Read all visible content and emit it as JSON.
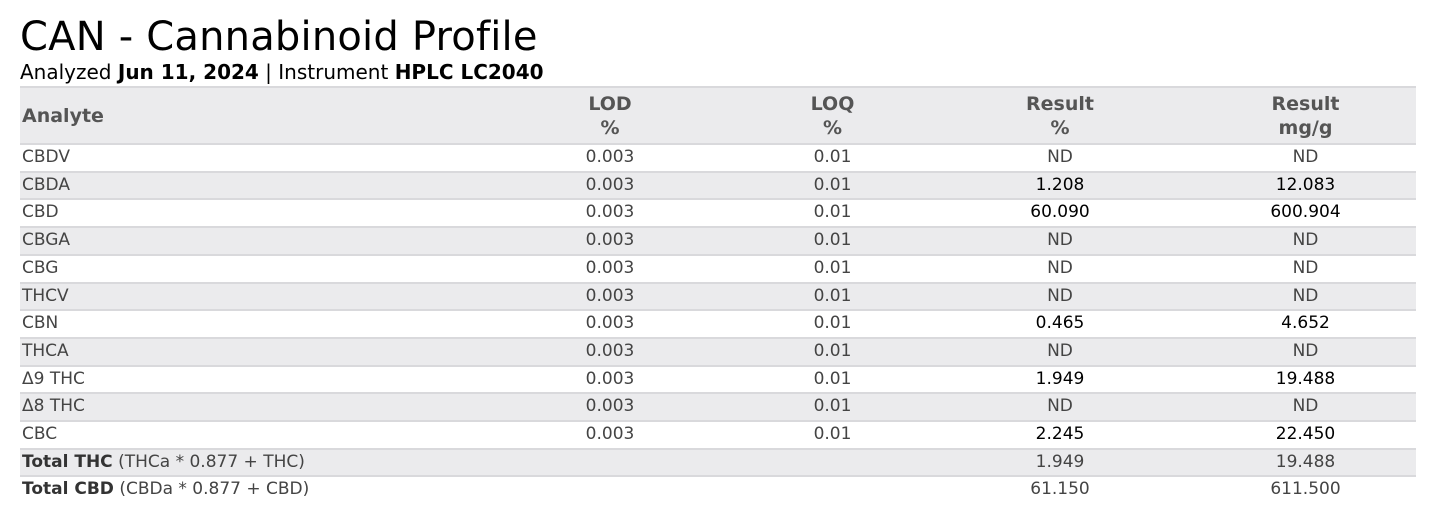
{
  "header": {
    "title": "CAN - Cannabinoid Profile",
    "analyzed_label": "Analyzed",
    "analyzed_date": "Jun 11, 2024",
    "separator": "|",
    "instrument_label": "Instrument",
    "instrument_name": "HPLC LC2040"
  },
  "table": {
    "columns": {
      "analyte": "Analyte",
      "lod": {
        "line1": "LOD",
        "line2": "%"
      },
      "loq": {
        "line1": "LOQ",
        "line2": "%"
      },
      "result_pct": {
        "line1": "Result",
        "line2": "%"
      },
      "result_mg": {
        "line1": "Result",
        "line2": "mg/g"
      }
    },
    "rows": [
      {
        "analyte": "CBDV",
        "lod": "0.003",
        "loq": "0.01",
        "result_pct": "ND",
        "result_mg": "ND"
      },
      {
        "analyte": "CBDA",
        "lod": "0.003",
        "loq": "0.01",
        "result_pct": "1.208",
        "result_mg": "12.083"
      },
      {
        "analyte": "CBD",
        "lod": "0.003",
        "loq": "0.01",
        "result_pct": "60.090",
        "result_mg": "600.904"
      },
      {
        "analyte": "CBGA",
        "lod": "0.003",
        "loq": "0.01",
        "result_pct": "ND",
        "result_mg": "ND"
      },
      {
        "analyte": "CBG",
        "lod": "0.003",
        "loq": "0.01",
        "result_pct": "ND",
        "result_mg": "ND"
      },
      {
        "analyte": "THCV",
        "lod": "0.003",
        "loq": "0.01",
        "result_pct": "ND",
        "result_mg": "ND"
      },
      {
        "analyte": "CBN",
        "lod": "0.003",
        "loq": "0.01",
        "result_pct": "0.465",
        "result_mg": "4.652"
      },
      {
        "analyte": "THCA",
        "lod": "0.003",
        "loq": "0.01",
        "result_pct": "ND",
        "result_mg": "ND"
      },
      {
        "analyte": "Δ9 THC",
        "lod": "0.003",
        "loq": "0.01",
        "result_pct": "1.949",
        "result_mg": "19.488"
      },
      {
        "analyte": "Δ8 THC",
        "lod": "0.003",
        "loq": "0.01",
        "result_pct": "ND",
        "result_mg": "ND"
      },
      {
        "analyte": "CBC",
        "lod": "0.003",
        "loq": "0.01",
        "result_pct": "2.245",
        "result_mg": "22.450"
      }
    ],
    "totals": [
      {
        "label": "Total THC",
        "formula": "(THCa * 0.877 + THC)",
        "result_pct": "1.949",
        "result_mg": "19.488"
      },
      {
        "label": "Total CBD",
        "formula": "(CBDa * 0.877 + CBD)",
        "result_pct": "61.150",
        "result_mg": "611.500"
      }
    ]
  }
}
